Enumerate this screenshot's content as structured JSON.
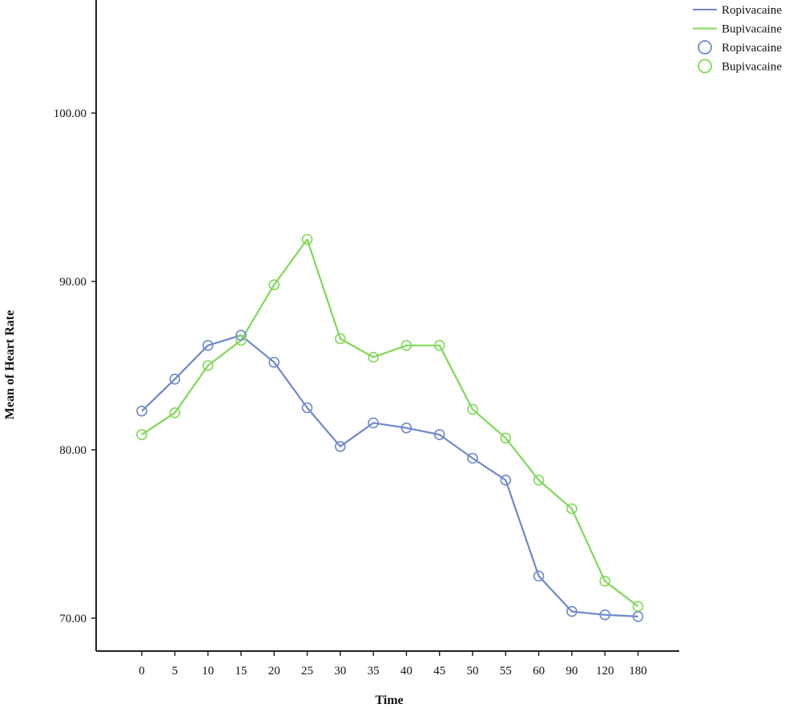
{
  "chart_data": {
    "type": "line",
    "xlabel": "Time",
    "ylabel": "Mean of Heart Rate",
    "categories": [
      "0",
      "5",
      "10",
      "15",
      "20",
      "25",
      "30",
      "35",
      "40",
      "45",
      "50",
      "55",
      "60",
      "90",
      "120",
      "180"
    ],
    "y_ticks": [
      "70.00",
      "80.00",
      "90.00",
      "100.00"
    ],
    "ylim": [
      67.8,
      106.8
    ],
    "grid": false,
    "legend_position": "top-right",
    "markers": "open-circle",
    "series": [
      {
        "name": "Ropivacaine",
        "color": "#6e88cc",
        "values": [
          82.3,
          84.2,
          86.2,
          86.8,
          85.2,
          82.5,
          80.2,
          81.6,
          81.3,
          80.9,
          79.5,
          78.2,
          72.5,
          70.4,
          70.2,
          70.1
        ]
      },
      {
        "name": "Bupivacaine",
        "color": "#7ed957",
        "values": [
          80.9,
          82.2,
          85.0,
          86.5,
          89.8,
          92.5,
          86.6,
          85.5,
          86.2,
          86.2,
          82.4,
          80.7,
          78.2,
          76.5,
          72.2,
          70.7
        ]
      }
    ],
    "legend": [
      {
        "label": "Ropivacaine",
        "kind": "line",
        "color": "#6e88cc"
      },
      {
        "label": "Bupivacaine",
        "kind": "line",
        "color": "#7ed957"
      },
      {
        "label": "Ropivacaine",
        "kind": "marker",
        "color": "#6e88cc"
      },
      {
        "label": "Bupivacaine",
        "kind": "marker",
        "color": "#7ed957"
      }
    ]
  }
}
